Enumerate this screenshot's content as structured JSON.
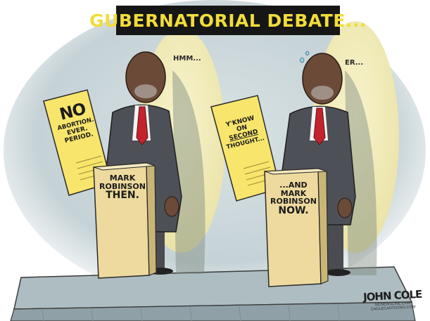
{
  "title": "GUBERNATORIAL DEBATE...",
  "left_figure": {
    "speech": "HMM...",
    "sign": {
      "headline": "NO",
      "line1": "ABORTION.",
      "line2": "EVER.",
      "line3": "PERIOD."
    },
    "podium": [
      "MARK",
      "ROBINSON",
      "THEN."
    ]
  },
  "right_figure": {
    "speech": "ER...",
    "sign": {
      "line1": "Y'KNOW",
      "line2": "ON",
      "line3": "SECOND",
      "line4": "THOUGHT..."
    },
    "podium": [
      "...AND",
      "MARK",
      "ROBINSON",
      "NOW."
    ]
  },
  "signature": {
    "name": "JOHN COLE",
    "line1": "NCNEWSLINE.COM",
    "line2": "CAGLECARTOONS.COM"
  },
  "colors": {
    "background": "#c5d2d6",
    "spotlight": "#f4efb9",
    "title_box": "#161616",
    "title_text": "#f2dc3a",
    "paper": "#f8e56c",
    "podium": "#eeda9e",
    "suit": "#4e5057",
    "tie": "#c4232d",
    "skin": "#6b4a38"
  }
}
